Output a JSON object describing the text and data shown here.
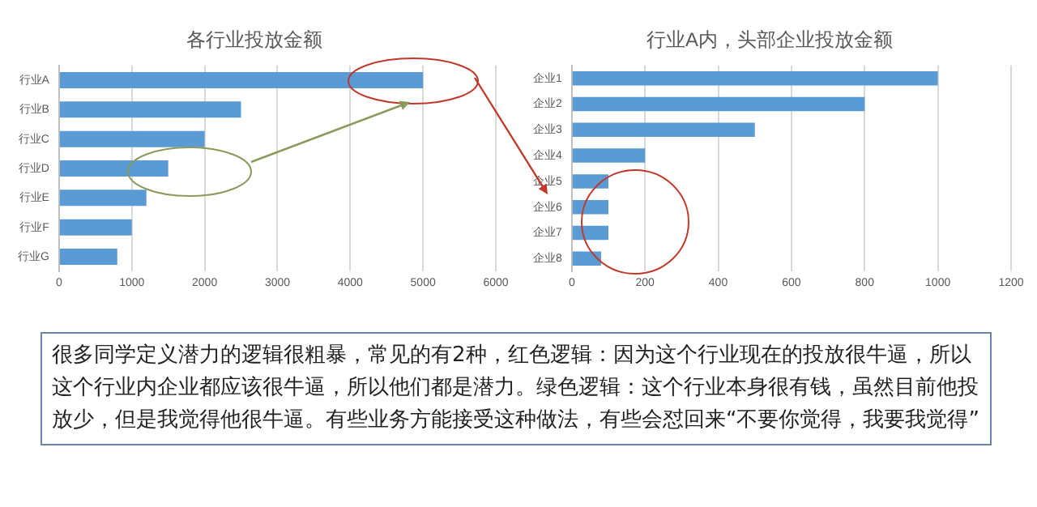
{
  "chart_data": [
    {
      "type": "bar",
      "orientation": "horizontal",
      "title": "各行业投放金额",
      "categories": [
        "行业A",
        "行业B",
        "行业C",
        "行业D",
        "行业E",
        "行业F",
        "行业G"
      ],
      "values": [
        5000,
        2500,
        2000,
        1500,
        1200,
        1000,
        800
      ],
      "color": "#5b9bd5",
      "xlim": [
        0,
        6000
      ],
      "xticks": [
        0,
        1000,
        2000,
        3000,
        4000,
        5000,
        6000
      ],
      "grid": "x",
      "legend": false
    },
    {
      "type": "bar",
      "orientation": "horizontal",
      "title": "行业A内，头部企业投放金额",
      "categories": [
        "企业1",
        "企业2",
        "企业3",
        "企业4",
        "企业5",
        "企业6",
        "企业7",
        "企业8"
      ],
      "values": [
        1000,
        800,
        500,
        200,
        100,
        100,
        100,
        80
      ],
      "color": "#5b9bd5",
      "xlim": [
        0,
        1200
      ],
      "xticks": [
        0,
        200,
        400,
        600,
        800,
        1000,
        1200
      ],
      "grid": "x",
      "legend": false
    },
    {
      "type": "other",
      "annotations": [
        "很多同学定义潜力的逻辑很粗暴，常见的有2种，红色逻辑：因为这个行业现在的投放很牛逼，所以这个行业内企业都应该很牛逼，所以他们都是潜力。绿色逻辑：这个行业本身很有钱，虽然目前他投放少，但是我觉得他很牛逼。有些业务方能接受这种做法，有些会怼回来“不要你觉得，我要我觉得”"
      ]
    }
  ]
}
